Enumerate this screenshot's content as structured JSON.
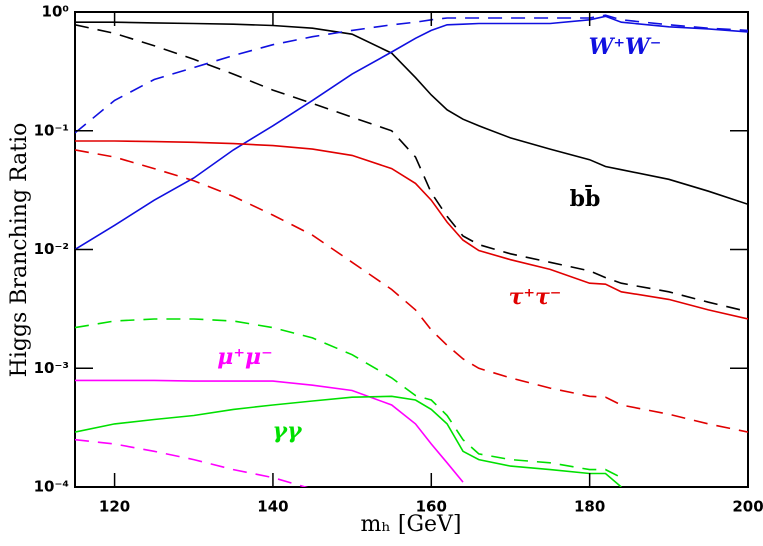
{
  "chart_data": {
    "type": "line",
    "xlabel": "mₕ [GeV]",
    "ylabel": "Higgs Branching Ratio",
    "log_y": true,
    "x": [
      115,
      120,
      125,
      130,
      135,
      140,
      145,
      150,
      155,
      158,
      160,
      162,
      164,
      166,
      170,
      175,
      180,
      182,
      184,
      190,
      195,
      200
    ],
    "xlim": [
      115,
      200
    ],
    "xticks": [
      120,
      140,
      160,
      180,
      200
    ],
    "ylim": [
      0.0001,
      1
    ],
    "yticks": [
      {
        "value": 0.0001,
        "label": "10⁻⁴"
      },
      {
        "value": 0.001,
        "label": "10⁻³"
      },
      {
        "value": 0.01,
        "label": "10⁻²"
      },
      {
        "value": 0.1,
        "label": "10⁻¹"
      },
      {
        "value": 1,
        "label": "10⁰"
      }
    ],
    "series": [
      {
        "name": "bb̄",
        "color": "#000000",
        "dashed": false,
        "values": [
          0.82,
          0.82,
          0.81,
          0.8,
          0.79,
          0.77,
          0.73,
          0.65,
          0.45,
          0.28,
          0.2,
          0.15,
          0.125,
          0.11,
          0.087,
          0.07,
          0.057,
          0.05,
          0.047,
          0.039,
          0.031,
          0.024
        ]
      },
      {
        "color": "#000000",
        "dashed": true,
        "values": [
          0.78,
          0.66,
          0.52,
          0.4,
          0.3,
          0.22,
          0.17,
          0.13,
          0.1,
          0.06,
          0.03,
          0.019,
          0.013,
          0.011,
          0.0092,
          0.0078,
          0.0066,
          0.0058,
          0.0052,
          0.0044,
          0.0036,
          0.003
        ]
      },
      {
        "name": "W⁺W⁻",
        "color": "#1010e0",
        "dashed": false,
        "values": [
          0.01,
          0.016,
          0.026,
          0.04,
          0.069,
          0.11,
          0.18,
          0.3,
          0.46,
          0.6,
          0.7,
          0.78,
          0.79,
          0.8,
          0.8,
          0.8,
          0.86,
          0.92,
          0.82,
          0.75,
          0.72,
          0.68
        ]
      },
      {
        "color": "#1010e0",
        "dashed": true,
        "values": [
          0.096,
          0.18,
          0.27,
          0.34,
          0.43,
          0.53,
          0.62,
          0.7,
          0.78,
          0.82,
          0.86,
          0.89,
          0.89,
          0.89,
          0.89,
          0.89,
          0.89,
          0.94,
          0.86,
          0.78,
          0.73,
          0.7
        ]
      },
      {
        "name": "τ⁺τ⁻",
        "color": "#e00000",
        "dashed": false,
        "values": [
          0.082,
          0.082,
          0.081,
          0.08,
          0.078,
          0.075,
          0.07,
          0.062,
          0.048,
          0.036,
          0.026,
          0.017,
          0.012,
          0.0098,
          0.0082,
          0.0068,
          0.0052,
          0.0051,
          0.0044,
          0.0038,
          0.0031,
          0.0026
        ]
      },
      {
        "color": "#e00000",
        "dashed": true,
        "values": [
          0.069,
          0.06,
          0.048,
          0.038,
          0.028,
          0.0195,
          0.0132,
          0.0078,
          0.0046,
          0.0031,
          0.0021,
          0.00156,
          0.0012,
          0.001,
          0.00083,
          0.00068,
          0.00058,
          0.00057,
          0.00049,
          0.00041,
          0.00034,
          0.00029
        ]
      },
      {
        "name": "μ⁺μ⁻",
        "color": "#ff00ff",
        "dashed": false,
        "values": [
          0.00079,
          0.00079,
          0.00079,
          0.00078,
          0.00078,
          0.00078,
          0.00072,
          0.00065,
          0.00049,
          0.00034,
          0.00023,
          0.00016,
          0.00011,
          null,
          null,
          null,
          null,
          null,
          null,
          null,
          null,
          null
        ]
      },
      {
        "color": "#ff00ff",
        "dashed": true,
        "values": [
          0.00025,
          0.00023,
          0.0002,
          0.00017,
          0.00014,
          0.00012,
          9.6e-05,
          null,
          null,
          null,
          null,
          null,
          null,
          null,
          null,
          null,
          null,
          null,
          null,
          null,
          null,
          null
        ]
      },
      {
        "name": "γγ",
        "color": "#00e000",
        "dashed": false,
        "values": [
          0.00029,
          0.00034,
          0.00037,
          0.0004,
          0.00045,
          0.00049,
          0.00053,
          0.00057,
          0.00058,
          0.00054,
          0.00045,
          0.00034,
          0.0002,
          0.00017,
          0.00015,
          0.00014,
          0.00013,
          0.00013,
          0.0001,
          null,
          null,
          null
        ]
      },
      {
        "color": "#00e000",
        "dashed": true,
        "values": [
          0.0022,
          0.0025,
          0.0026,
          0.0026,
          0.0025,
          0.0022,
          0.0018,
          0.0013,
          0.00083,
          0.00059,
          0.00054,
          0.0004,
          0.00025,
          0.00019,
          0.00017,
          0.00016,
          0.00014,
          0.00014,
          0.00012,
          null,
          null,
          null
        ]
      }
    ]
  }
}
